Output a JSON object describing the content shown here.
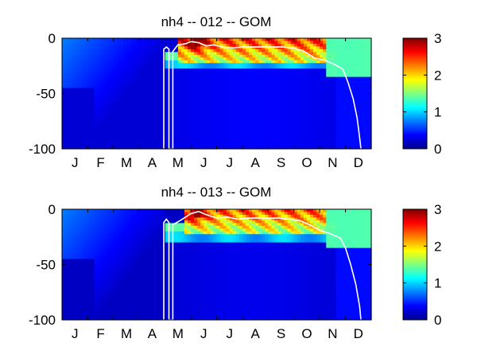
{
  "chart_data": [
    {
      "type": "heatmap",
      "title": "nh4 -- 012 -- GOM",
      "xlabel": "",
      "ylabel": "",
      "x_ticks": [
        "J",
        "F",
        "M",
        "A",
        "M",
        "J",
        "J",
        "A",
        "S",
        "O",
        "N",
        "D"
      ],
      "x_range_months": [
        0,
        12
      ],
      "y_ticks": [
        0,
        -50,
        -100
      ],
      "ylim": [
        -100,
        0
      ],
      "colorbar": {
        "min": 0,
        "max": 3,
        "ticks": [
          0,
          1,
          2,
          3
        ],
        "colormap": "jet"
      },
      "grid": false,
      "approx_field": {
        "description_values": "estimated concentration levels by depth band and month",
        "surface_peak_months": [
          4.5,
          9.5
        ],
        "surface_peak_value": 2.5,
        "peak_value": 3.0,
        "mid_band_depth": [
          -20,
          -28
        ],
        "mid_band_value": 0.9,
        "late_year_surface_value": 1.4,
        "deep_value": 0.25
      },
      "contour_line": [
        [
          3.95,
          -100
        ],
        [
          3.95,
          -10
        ],
        [
          4.05,
          -8
        ],
        [
          4.15,
          -10
        ],
        [
          4.15,
          -100
        ],
        [
          4.3,
          -100
        ],
        [
          4.3,
          -12
        ],
        [
          4.5,
          -6
        ],
        [
          4.8,
          -5
        ],
        [
          5.0,
          -3
        ],
        [
          5.3,
          -4
        ],
        [
          5.6,
          -7
        ],
        [
          5.9,
          -6
        ],
        [
          6.2,
          -8
        ],
        [
          6.6,
          -9
        ],
        [
          7.0,
          -8
        ],
        [
          7.4,
          -8
        ],
        [
          7.8,
          -8
        ],
        [
          8.2,
          -8
        ],
        [
          8.6,
          -8
        ],
        [
          9.0,
          -9
        ],
        [
          9.4,
          -12
        ],
        [
          9.8,
          -18
        ],
        [
          10.2,
          -20
        ],
        [
          10.6,
          -24
        ],
        [
          10.9,
          -28
        ],
        [
          11.1,
          -40
        ],
        [
          11.3,
          -55
        ],
        [
          11.45,
          -72
        ],
        [
          11.55,
          -90
        ],
        [
          11.6,
          -100
        ]
      ]
    },
    {
      "type": "heatmap",
      "title": "nh4 -- 013 -- GOM",
      "xlabel": "",
      "ylabel": "",
      "x_ticks": [
        "J",
        "F",
        "M",
        "A",
        "M",
        "J",
        "J",
        "A",
        "S",
        "O",
        "N",
        "D"
      ],
      "x_range_months": [
        0,
        12
      ],
      "y_ticks": [
        0,
        -50,
        -100
      ],
      "ylim": [
        -100,
        0
      ],
      "colorbar": {
        "min": 0,
        "max": 3,
        "ticks": [
          0,
          1,
          2,
          3
        ],
        "colormap": "jet"
      },
      "grid": false,
      "approx_field": {
        "description_values": "estimated concentration levels by depth band and month",
        "surface_peak_months": [
          4.7,
          9.5
        ],
        "surface_peak_value": 2.4,
        "peak_value": 3.0,
        "mid_band_depth": [
          -20,
          -30
        ],
        "mid_band_value": 0.9,
        "late_year_surface_value": 1.4,
        "deep_value": 0.2
      },
      "contour_line": [
        [
          3.95,
          -100
        ],
        [
          3.95,
          -12
        ],
        [
          4.05,
          -9
        ],
        [
          4.15,
          -12
        ],
        [
          4.15,
          -100
        ],
        [
          4.3,
          -100
        ],
        [
          4.3,
          -14
        ],
        [
          4.6,
          -10
        ],
        [
          5.0,
          -4
        ],
        [
          5.3,
          -2
        ],
        [
          5.6,
          -5
        ],
        [
          6.0,
          -8
        ],
        [
          6.4,
          -7
        ],
        [
          6.8,
          -9
        ],
        [
          7.2,
          -8
        ],
        [
          7.6,
          -8
        ],
        [
          8.0,
          -8
        ],
        [
          8.4,
          -8
        ],
        [
          8.8,
          -9
        ],
        [
          9.2,
          -10
        ],
        [
          9.6,
          -14
        ],
        [
          10.0,
          -19
        ],
        [
          10.4,
          -22
        ],
        [
          10.8,
          -26
        ],
        [
          11.0,
          -35
        ],
        [
          11.2,
          -50
        ],
        [
          11.4,
          -68
        ],
        [
          11.55,
          -88
        ],
        [
          11.6,
          -100
        ]
      ]
    }
  ]
}
